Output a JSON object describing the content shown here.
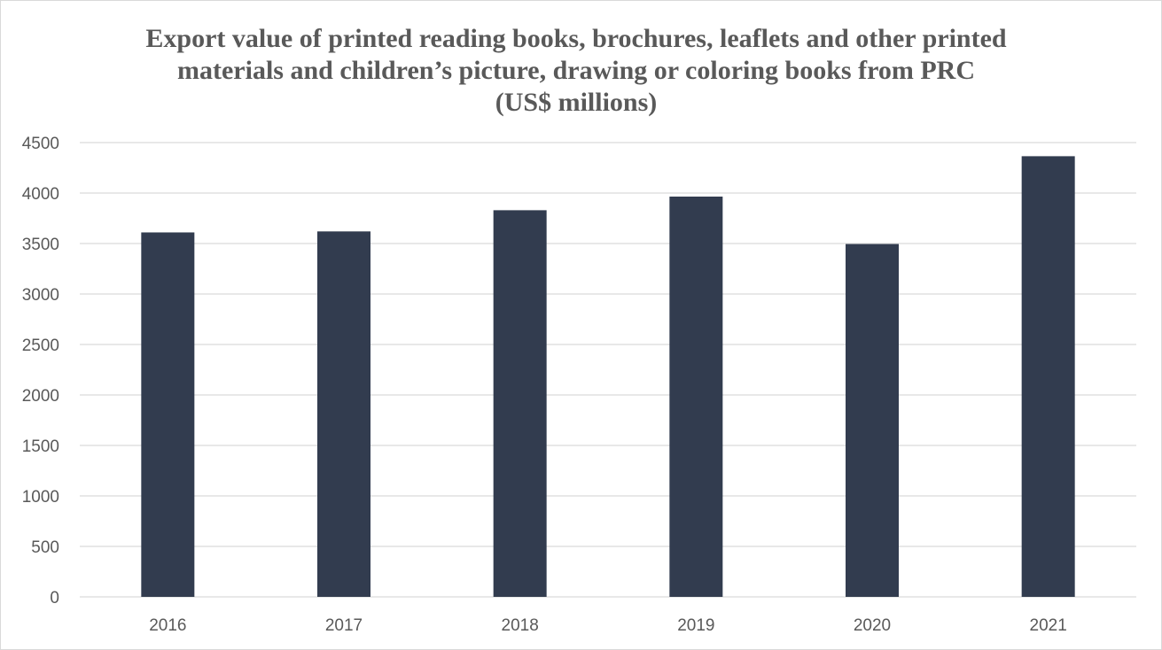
{
  "chart_data": {
    "type": "bar",
    "title_lines": [
      "Export value of printed reading books, brochures, leaflets and other printed",
      "materials and children’s picture, drawing or coloring books from PRC",
      "(US$ millions)"
    ],
    "categories": [
      "2016",
      "2017",
      "2018",
      "2019",
      "2020",
      "2021"
    ],
    "values": [
      3610,
      3620,
      3830,
      3965,
      3495,
      4365
    ],
    "xlabel": "",
    "ylabel": "",
    "ylim": [
      0,
      4500
    ],
    "yticks": [
      "0",
      "500",
      "1000",
      "1500",
      "2000",
      "2500",
      "3000",
      "3500",
      "4000",
      "4500"
    ],
    "grid": true,
    "legend": "none",
    "bar_color": "#323c4f",
    "grid_color": "#d9d9d9"
  }
}
